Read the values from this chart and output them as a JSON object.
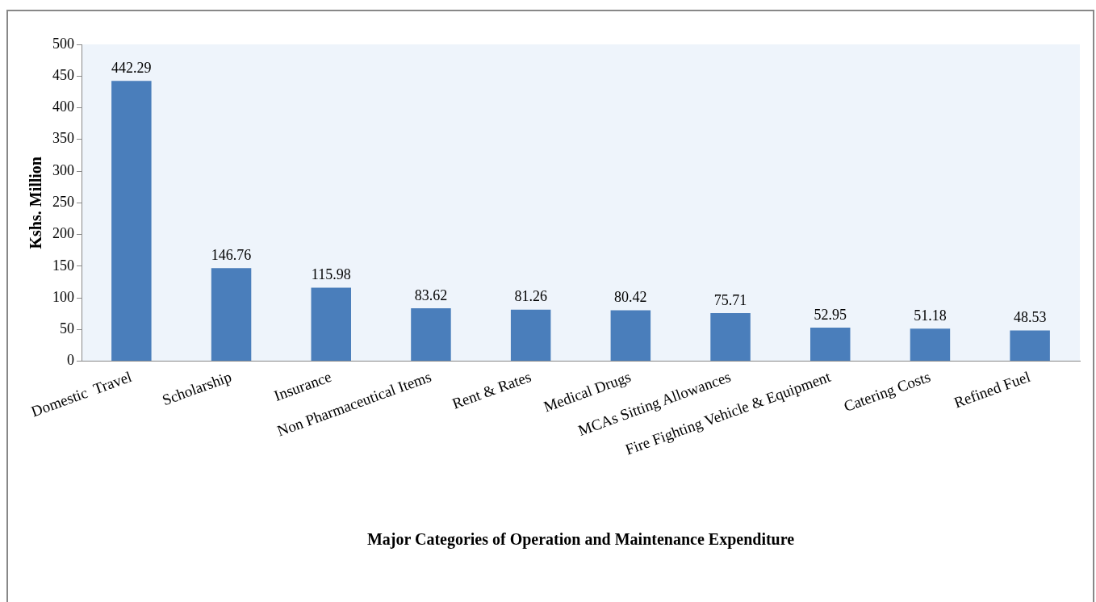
{
  "chart_data": {
    "type": "bar",
    "xlabel": "Major Categories of Operation and Maintenance Expenditure",
    "ylabel": "Kshs. Million",
    "categories": [
      "Domestic  Travel",
      "Scholarship",
      "Insurance",
      "Non Pharmaceutical Items",
      "Rent & Rates",
      "Medical Drugs",
      "MCAs Sitting Allowances",
      "Fire Fighting Vehicle & Equipment",
      "Catering Costs",
      "Refined Fuel"
    ],
    "values": [
      442.29,
      146.76,
      115.98,
      83.62,
      81.26,
      80.42,
      75.71,
      52.95,
      51.18,
      48.53
    ],
    "color": "#4a7ebb",
    "ylim": [
      0,
      500
    ],
    "yticks": [
      0,
      50,
      100,
      150,
      200,
      250,
      300,
      350,
      400,
      450,
      500
    ],
    "grid": false,
    "legend": false,
    "data_labels": true
  }
}
